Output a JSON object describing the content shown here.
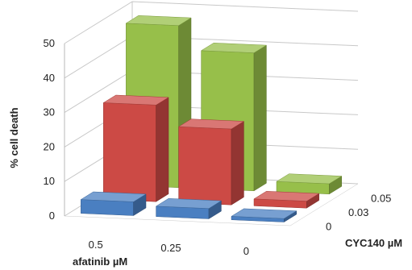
{
  "chart_data": {
    "type": "bar3d",
    "ylabel": "% cell death",
    "xlabel": "afatinib µM",
    "zlabel": "CYC140 µM",
    "ylim": [
      0,
      50
    ],
    "y_ticks": [
      "0",
      "10",
      "20",
      "30",
      "40",
      "50"
    ],
    "categories": [
      "0.5",
      "0.25",
      "0"
    ],
    "depth_categories": [
      "0",
      "0.03",
      "0.05"
    ],
    "series": [
      {
        "depth": "0",
        "color": "#4a7fc1",
        "values": [
          4,
          3,
          1
        ]
      },
      {
        "depth": "0.03",
        "color": "#cc4a45",
        "values": [
          28,
          22,
          2
        ]
      },
      {
        "depth": "0.05",
        "color": "#97bf4a",
        "values": [
          47,
          40,
          3
        ]
      }
    ],
    "grid": true
  }
}
